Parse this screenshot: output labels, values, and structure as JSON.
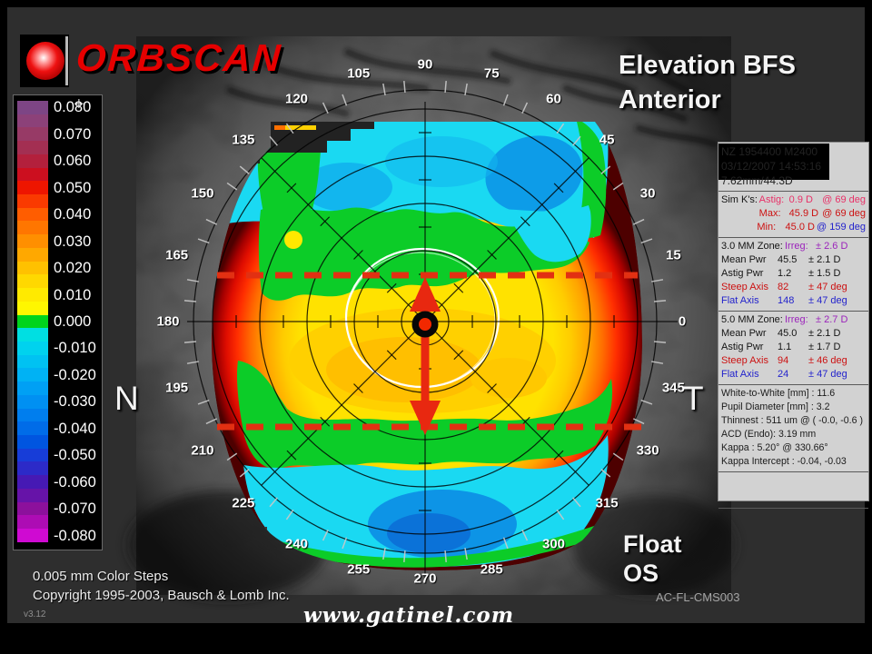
{
  "logo": {
    "brand": "ORBSCAN"
  },
  "title": {
    "line1": "Elevation BFS",
    "line2": "Anterior"
  },
  "map": {
    "orientation_left": "N",
    "orientation_right": "T",
    "mode": "Float",
    "eye": "OS",
    "angle_labels": [
      "0",
      "15",
      "30",
      "45",
      "60",
      "75",
      "90",
      "105",
      "120",
      "135",
      "150",
      "165",
      "180",
      "195",
      "210",
      "225",
      "240",
      "255",
      "270",
      "285",
      "300",
      "315",
      "330",
      "345"
    ]
  },
  "color_scale": {
    "cursor_glyph": "+",
    "labels": [
      "0.080",
      "0.070",
      "0.060",
      "0.050",
      "0.040",
      "0.030",
      "0.020",
      "0.010",
      "0.000",
      "-0.010",
      "-0.020",
      "-0.030",
      "-0.040",
      "-0.050",
      "-0.060",
      "-0.070",
      "-0.080"
    ],
    "colors": [
      "#7d4585",
      "#8c4179",
      "#973a66",
      "#a32f52",
      "#b3203c",
      "#cc0f1f",
      "#ee1500",
      "#fa3a00",
      "#ff5d00",
      "#ff7600",
      "#ff8f00",
      "#ffa800",
      "#ffc100",
      "#ffd800",
      "#ffea00",
      "#fff700",
      "#00d41c",
      "#00dfe2",
      "#00d2ee",
      "#00c2f2",
      "#00b2f4",
      "#00a0f4",
      "#0090f2",
      "#007eee",
      "#006ce8",
      "#0055e0",
      "#173dd8",
      "#2c2ac8",
      "#4619b4",
      "#6613a8",
      "#8c109c",
      "#ad0cb4",
      "#cf0ad2"
    ]
  },
  "panel": {
    "exam_line": "NZ 1954400 M2400",
    "date_line": "03/12/2007 14:53:16",
    "bfs_line": "7.62mm/44.3D",
    "sim_k": {
      "title": "Sim K's:",
      "rows": [
        {
          "label": "Astig:",
          "value": "0.9 D",
          "axis": "@ 69 deg",
          "color": "pink",
          "axis_color": "pink"
        },
        {
          "label": "Max:",
          "value": "45.9 D",
          "axis": "@ 69 deg",
          "color": "red",
          "axis_color": "red"
        },
        {
          "label": "Min:",
          "value": "45.0 D",
          "axis": "@ 159 deg",
          "color": "red",
          "axis_color": "blue"
        }
      ]
    },
    "zones": [
      {
        "title": "3.0 MM Zone:",
        "irreg_label": "Irreg:",
        "irreg": "± 2.6 D",
        "rows": [
          {
            "label": "Mean Pwr",
            "value": "45.5",
            "tol": "± 2.1 D",
            "color": "black"
          },
          {
            "label": "Astig Pwr",
            "value": "1.2",
            "tol": "± 1.5 D",
            "color": "black"
          },
          {
            "label": "Steep Axis",
            "value": "82",
            "tol": "± 47 deg",
            "color": "red"
          },
          {
            "label": "Flat Axis",
            "value": "148",
            "tol": "± 47 deg",
            "color": "blue"
          }
        ]
      },
      {
        "title": "5.0 MM Zone:",
        "irreg_label": "Irreg:",
        "irreg": "± 2.7 D",
        "rows": [
          {
            "label": "Mean Pwr",
            "value": "45.0",
            "tol": "± 2.1 D",
            "color": "black"
          },
          {
            "label": "Astig Pwr",
            "value": "1.1",
            "tol": "± 1.7 D",
            "color": "black"
          },
          {
            "label": "Steep Axis",
            "value": "94",
            "tol": "± 46 deg",
            "color": "red"
          },
          {
            "label": "Flat Axis",
            "value": "24",
            "tol": "± 47 deg",
            "color": "blue"
          }
        ]
      }
    ],
    "stats": [
      "White-to-White [mm] : 11.6",
      "Pupil Diameter [mm] :  3.2",
      "Thinnest : 511 um @ ( -0.0, -0.6 )",
      "ACD (Endo): 3.19 mm",
      "Kappa : 5.20° @ 330.66°",
      "Kappa Intercept : -0.04, -0.03"
    ]
  },
  "footer": {
    "color_steps": "0.005 mm Color Steps",
    "copyright": "Copyright 1995-2003, Bausch & Lomb Inc.",
    "version": "v3.12",
    "watermark": "www.gatinel.com",
    "doc_code": "AC-FL-CMS003"
  }
}
